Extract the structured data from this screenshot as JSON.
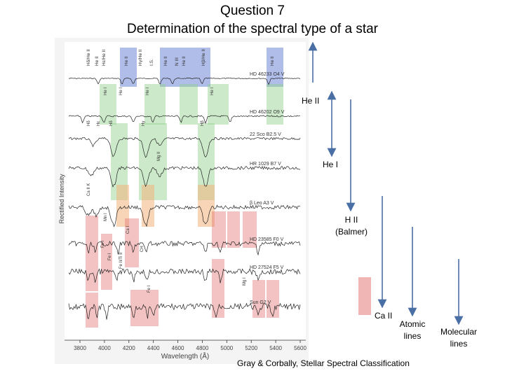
{
  "title": {
    "line1": "Question 7",
    "line2": "Determination of the spectral type of a star"
  },
  "figure": {
    "ylabel": "Rectified Intensity",
    "xlabel": "Wavelength (Å)",
    "ticks": [
      "3800",
      "4000",
      "4200",
      "4400",
      "4600",
      "4800",
      "5000",
      "5200",
      "5400",
      "5600"
    ],
    "top_labels": [
      "Hδ/He II",
      "He II",
      "Hε/He II",
      "He II",
      "Hγ/He II",
      "I.S.",
      "He II",
      "N III",
      "He II",
      "Hβ/He II",
      "He II"
    ],
    "stars": [
      {
        "name": "HD 46233  O4 V"
      },
      {
        "name": "HD 46202  O9 V"
      },
      {
        "name": "22 Sco  B2.5 V"
      },
      {
        "name": "HR 1029  B7 V"
      },
      {
        "name": "β Leo  A3 V"
      },
      {
        "name": "HD 23585  F0 V"
      },
      {
        "name": "HD 27524  F5 V"
      },
      {
        "name": "Sun  G2 V"
      }
    ],
    "line_labels": [
      "He I",
      "He I",
      "He I",
      "He I",
      "Hδ",
      "Hγ",
      "Hβ",
      "Hε",
      "Hδ",
      "Mg II",
      "Ca II K",
      "Fe I",
      "Ca I",
      "Fe II/Ti II",
      "Mn I",
      "Fe I",
      "CH",
      "Fe I",
      "Mg I"
    ]
  },
  "annotations": {
    "he2": "He II",
    "he1": "He I",
    "h2_line1": "H II",
    "h2_line2": "(Balmer)",
    "ca2": "Ca II",
    "atomic_line1": "Atomic",
    "atomic_line2": "lines",
    "molecular_line1": "Molecular",
    "molecular_line2": "lines"
  },
  "credit": "Gray & Corbally, Stellar Spectral Classification",
  "colors": {
    "blue": "#6f86d6",
    "green": "#8fd08a",
    "orange": "#f0b27a",
    "red": "#e47878",
    "arrow": "#4a6fa5"
  }
}
